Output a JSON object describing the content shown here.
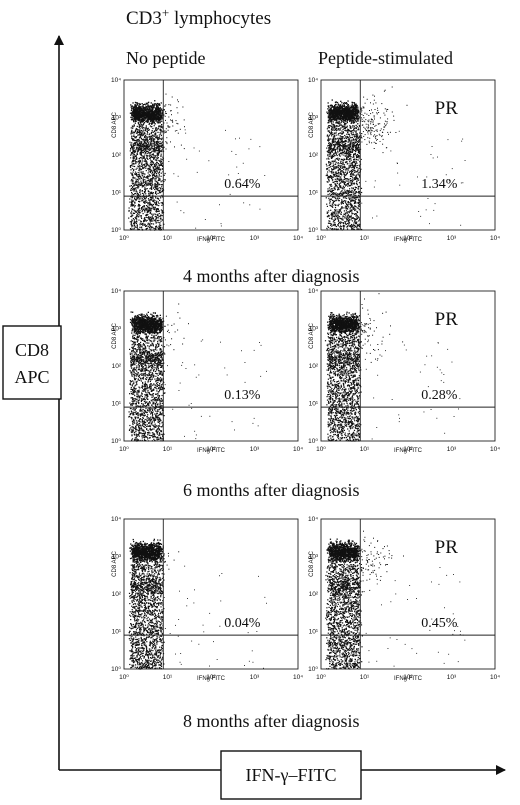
{
  "header": {
    "title_main": "CD3",
    "title_sup": "+",
    "title_rest": " lymphocytes",
    "col_no_peptide": "No peptide",
    "col_stimulated": "Peptide-stimulated"
  },
  "y_label": {
    "line1": "CD8",
    "line2": "APC"
  },
  "x_label": "IFN-γ–FITC",
  "panel_axes": {
    "x_title": "IFNg FITC",
    "y_title": "CD8 APC",
    "x_ticks": [
      "10⁰",
      "10¹",
      "10²",
      "10³",
      "10⁴"
    ],
    "y_ticks": [
      "10⁰",
      "10¹",
      "10²",
      "10³",
      "10⁴"
    ],
    "scale": "log",
    "xlim": [
      1,
      10000
    ],
    "ylim": [
      1,
      10000
    ],
    "x_gate": 8,
    "y_gate": 8
  },
  "row_labels": [
    "4 months after diagnosis",
    "6 months after diagnosis",
    "8 months after diagnosis"
  ],
  "chart_data": [
    {
      "type": "scatter",
      "row": 1,
      "condition": "No peptide",
      "gated_percent": "0.64%",
      "tag": ""
    },
    {
      "type": "scatter",
      "row": 1,
      "condition": "Peptide-stimulated",
      "gated_percent": "1.34%",
      "tag": "PR"
    },
    {
      "type": "scatter",
      "row": 2,
      "condition": "No peptide",
      "gated_percent": "0.13%",
      "tag": ""
    },
    {
      "type": "scatter",
      "row": 2,
      "condition": "Peptide-stimulated",
      "gated_percent": "0.28%",
      "tag": "PR"
    },
    {
      "type": "scatter",
      "row": 3,
      "condition": "No peptide",
      "gated_percent": "0.04%",
      "tag": ""
    },
    {
      "type": "scatter",
      "row": 3,
      "condition": "Peptide-stimulated",
      "gated_percent": "0.45%",
      "tag": "PR"
    }
  ]
}
